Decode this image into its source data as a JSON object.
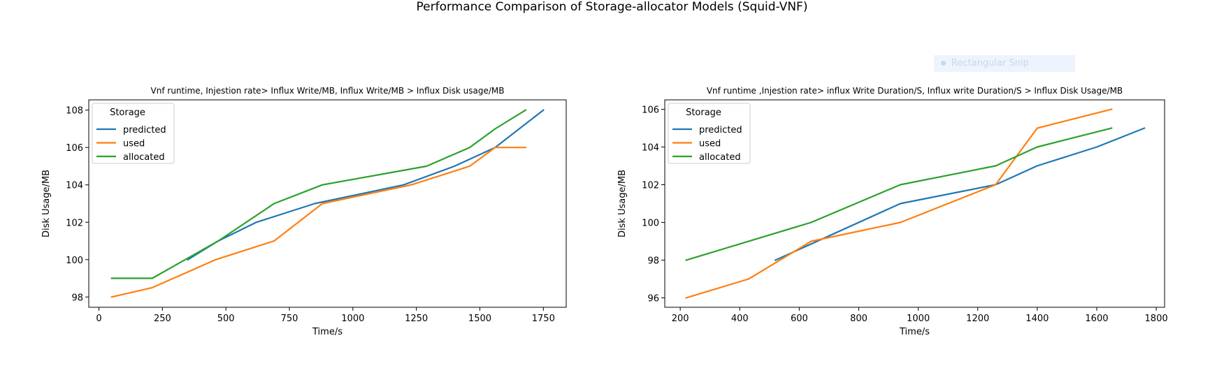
{
  "figure": {
    "suptitle": "Performance Comparison of Storage-allocator Models (Squid-VNF)"
  },
  "overlay": {
    "label": "Rectangular Snip"
  },
  "colors": {
    "predicted": "#1f77b4",
    "used": "#ff7f0e",
    "allocated": "#2ca02c"
  },
  "chart_data": [
    {
      "type": "line",
      "title": "Vnf runtime, Injestion rate> Influx Write/MB, Influx Write/MB > Influx Disk usage/MB",
      "xlabel": "Time/s",
      "ylabel": "Disk Usage/MB",
      "xlim": [
        -40,
        1840
      ],
      "ylim": [
        97.45,
        108.55
      ],
      "xticks": [
        0,
        250,
        500,
        750,
        1000,
        1250,
        1500,
        1750
      ],
      "yticks": [
        98,
        100,
        102,
        104,
        106,
        108
      ],
      "grid": false,
      "legend": {
        "title": "Storage",
        "position": "upper-left"
      },
      "series": [
        {
          "name": "predicted",
          "x": [
            350,
            470,
            620,
            850,
            1200,
            1400,
            1560,
            1750
          ],
          "y": [
            100,
            101,
            102,
            103,
            104,
            105,
            106,
            108
          ]
        },
        {
          "name": "used",
          "x": [
            50,
            210,
            460,
            690,
            880,
            1230,
            1460,
            1560,
            1680
          ],
          "y": [
            98,
            98.5,
            100,
            101,
            103,
            104,
            105,
            106,
            106
          ]
        },
        {
          "name": "allocated",
          "x": [
            50,
            210,
            470,
            690,
            880,
            1290,
            1460,
            1560,
            1680
          ],
          "y": [
            99,
            99,
            101,
            103,
            104,
            105,
            106,
            107,
            108
          ]
        }
      ]
    },
    {
      "type": "line",
      "title": "Vnf runtime ,Injestion rate> influx Write Duration/S, Influx write Duration/S > Influx Disk Usage/MB",
      "xlabel": "Time/s",
      "ylabel": "Disk Usage/MB",
      "xlim": [
        148,
        1828
      ],
      "ylim": [
        95.5,
        106.5
      ],
      "xticks": [
        200,
        400,
        600,
        800,
        1000,
        1200,
        1400,
        1600,
        1800
      ],
      "yticks": [
        96,
        98,
        100,
        102,
        104,
        106
      ],
      "grid": false,
      "legend": {
        "title": "Storage",
        "position": "upper-left"
      },
      "series": [
        {
          "name": "predicted",
          "x": [
            520,
            940,
            1260,
            1400,
            1600,
            1760
          ],
          "y": [
            98,
            101,
            102,
            103,
            104,
            105
          ]
        },
        {
          "name": "used",
          "x": [
            220,
            430,
            640,
            940,
            1260,
            1400,
            1650
          ],
          "y": [
            96,
            97,
            99,
            100,
            102,
            105,
            106
          ]
        },
        {
          "name": "allocated",
          "x": [
            220,
            640,
            940,
            1260,
            1400,
            1650
          ],
          "y": [
            98,
            100,
            102,
            103,
            104,
            105
          ]
        }
      ]
    }
  ]
}
